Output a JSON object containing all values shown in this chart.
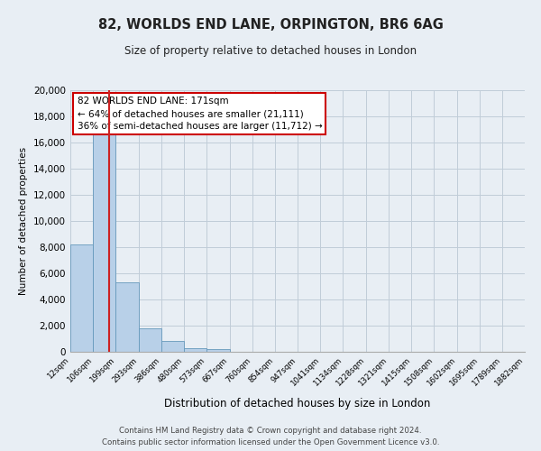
{
  "title": "82, WORLDS END LANE, ORPINGTON, BR6 6AG",
  "subtitle": "Size of property relative to detached houses in London",
  "xlabel": "Distribution of detached houses by size in London",
  "ylabel": "Number of detached properties",
  "bin_labels": [
    "12sqm",
    "106sqm",
    "199sqm",
    "293sqm",
    "386sqm",
    "480sqm",
    "573sqm",
    "667sqm",
    "760sqm",
    "854sqm",
    "947sqm",
    "1041sqm",
    "1134sqm",
    "1228sqm",
    "1321sqm",
    "1415sqm",
    "1508sqm",
    "1602sqm",
    "1695sqm",
    "1789sqm",
    "1882sqm"
  ],
  "bin_edges": [
    12,
    106,
    199,
    293,
    386,
    480,
    573,
    667,
    760,
    854,
    947,
    1041,
    1134,
    1228,
    1321,
    1415,
    1508,
    1602,
    1695,
    1789,
    1882
  ],
  "bar_values": [
    8200,
    16600,
    5300,
    1800,
    800,
    300,
    200,
    0,
    0,
    0,
    0,
    0,
    0,
    0,
    0,
    0,
    0,
    0,
    0,
    0
  ],
  "bar_color": "#b8d0e8",
  "bar_edge_color": "#6699bb",
  "ylim": [
    0,
    20000
  ],
  "yticks": [
    0,
    2000,
    4000,
    6000,
    8000,
    10000,
    12000,
    14000,
    16000,
    18000,
    20000
  ],
  "red_line_x": 171,
  "annotation_text": "82 WORLDS END LANE: 171sqm\n← 64% of detached houses are smaller (21,111)\n36% of semi-detached houses are larger (11,712) →",
  "annotation_box_color": "#ffffff",
  "annotation_box_edge": "#cc0000",
  "footer1": "Contains HM Land Registry data © Crown copyright and database right 2024.",
  "footer2": "Contains public sector information licensed under the Open Government Licence v3.0.",
  "background_color": "#e8eef4",
  "plot_bg_color": "#e8eef4",
  "grid_color": "#c0ccd8"
}
